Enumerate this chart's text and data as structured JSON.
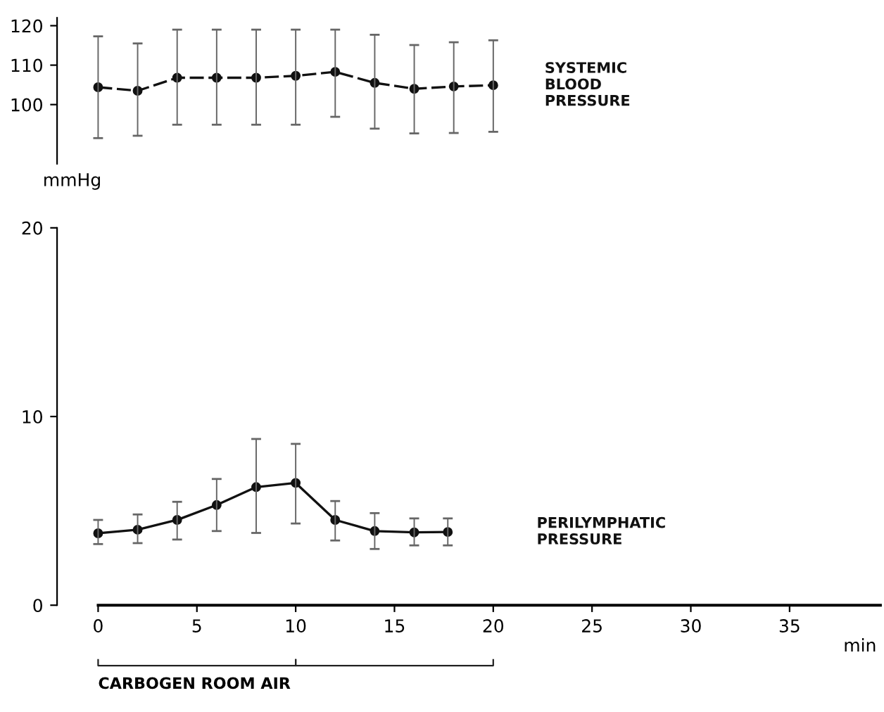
{
  "chart_data": [
    {
      "type": "line",
      "ylabel": "mmHg",
      "categories": [
        null,
        null,
        null,
        null,
        null,
        null,
        null,
        null,
        null,
        null,
        null
      ],
      "ylim": [
        85,
        122
      ],
      "yticks": [
        100,
        110,
        120
      ],
      "tick_labels": "y",
      "grid": false,
      "legend": false,
      "marker": "circle",
      "line_style": "dashed",
      "series": [
        {
          "name": "SYSTEMIC BLOOD PRESSURE",
          "color": "#111111",
          "values": [
            104.4,
            103.5,
            106.8,
            106.8,
            106.8,
            107.3,
            108.3,
            105.5,
            104.0,
            104.6,
            104.9
          ],
          "errors": [
            [
              91.5,
              117.3
            ],
            [
              92.1,
              115.5
            ],
            [
              94.9,
              119.0
            ],
            [
              94.9,
              119.0
            ],
            [
              94.9,
              119.0
            ],
            [
              94.9,
              119.0
            ],
            [
              96.9,
              119.0
            ],
            [
              93.9,
              117.7
            ],
            [
              92.7,
              115.1
            ],
            [
              92.8,
              115.8
            ],
            [
              93.1,
              116.3
            ]
          ]
        }
      ]
    },
    {
      "type": "line",
      "xlabel": "min",
      "xlim": [
        0,
        39.6
      ],
      "xticks": [
        0,
        5,
        10,
        15,
        20,
        25,
        30,
        35
      ],
      "ylim": [
        0,
        20
      ],
      "yticks": [
        0,
        10,
        20
      ],
      "grid": false,
      "legend": false,
      "marker": "circle",
      "line_style": "solid",
      "annotations": [
        "CARBOGEN ROOM AIR"
      ],
      "series": [
        {
          "name": "PERILYMPHATIC PRESSURE",
          "color": "#111111",
          "x": [
            0,
            2,
            4,
            6,
            8,
            10,
            12,
            14,
            16,
            17.7
          ],
          "values": [
            3.81,
            4.0,
            4.52,
            5.31,
            6.26,
            6.48,
            4.52,
            3.93,
            3.86,
            3.88
          ],
          "errors": [
            [
              3.24,
              4.52
            ],
            [
              3.29,
              4.81
            ],
            [
              3.48,
              5.48
            ],
            [
              3.93,
              6.69
            ],
            [
              3.83,
              8.81
            ],
            [
              4.33,
              8.55
            ],
            [
              3.43,
              5.52
            ],
            [
              2.98,
              4.88
            ],
            [
              3.17,
              4.6
            ],
            [
              3.17,
              4.6
            ]
          ]
        }
      ]
    }
  ]
}
